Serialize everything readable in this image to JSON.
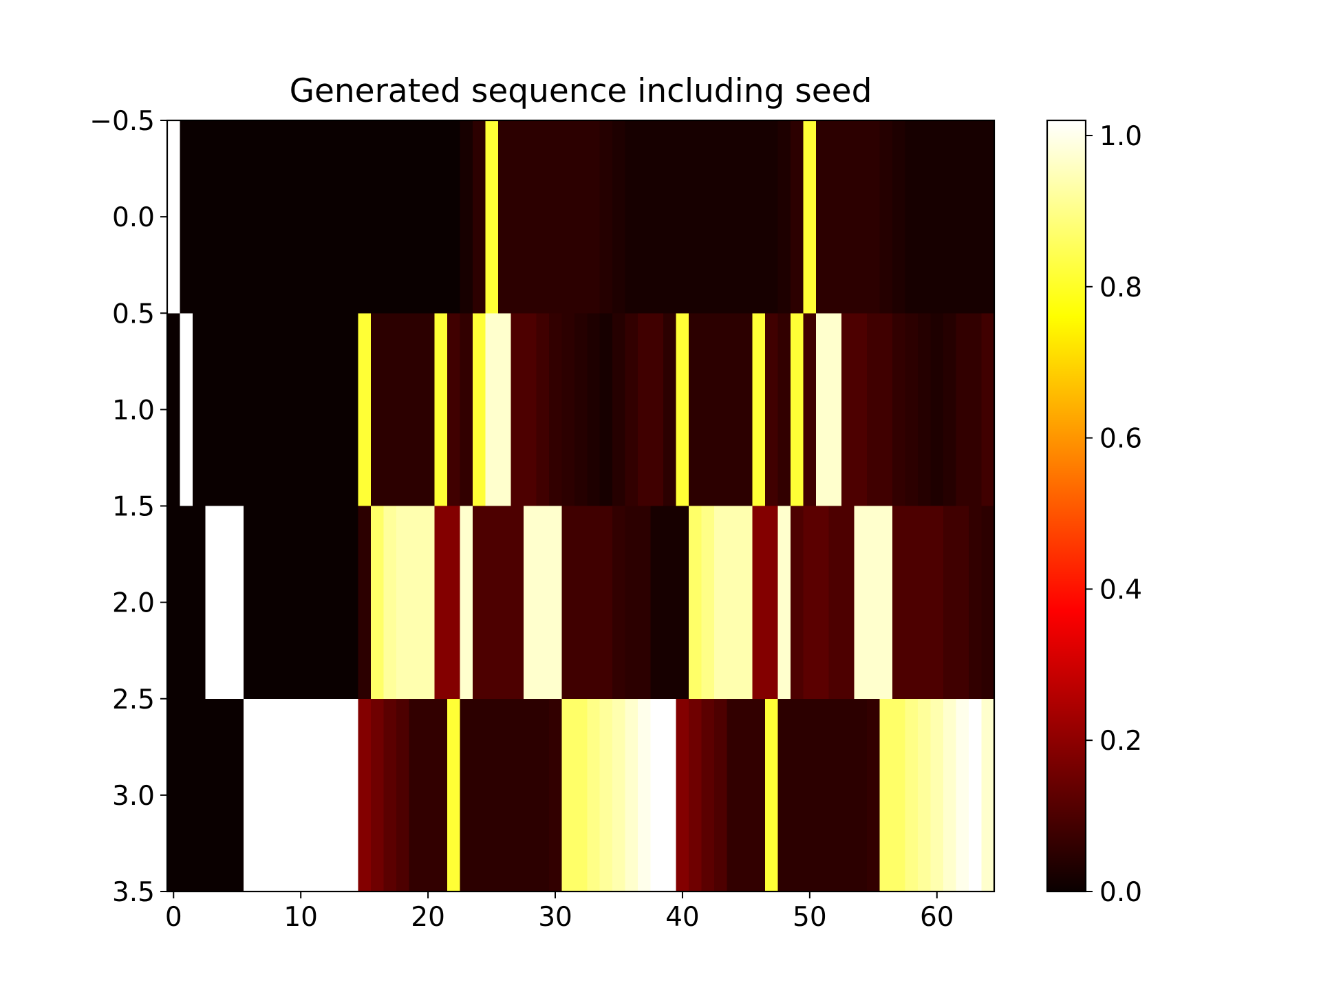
{
  "chart_data": {
    "type": "heatmap",
    "title": "Generated sequence including seed",
    "xlabel": "",
    "ylabel": "",
    "colormap": "hot",
    "xlim": [
      -0.5,
      64.5
    ],
    "ylim": [
      3.5,
      -0.5
    ],
    "x_ticks": [
      0,
      10,
      20,
      30,
      40,
      50,
      60
    ],
    "x_tick_labels": [
      "0",
      "10",
      "20",
      "30",
      "40",
      "50",
      "60"
    ],
    "y_ticks": [
      -0.5,
      0.0,
      0.5,
      1.0,
      1.5,
      2.0,
      2.5,
      3.0,
      3.5
    ],
    "y_tick_labels": [
      "−0.5",
      "0.0",
      "0.5",
      "1.0",
      "1.5",
      "2.0",
      "2.5",
      "3.0",
      "3.5"
    ],
    "colorbar": {
      "range": [
        0.0,
        1.02
      ],
      "ticks": [
        0.0,
        0.2,
        0.4,
        0.6,
        0.8,
        1.0
      ],
      "tick_labels": [
        "0.0",
        "0.2",
        "0.4",
        "0.6",
        "0.8",
        "1.0"
      ]
    },
    "rows": [
      [
        1.0,
        0,
        0,
        0,
        0,
        0,
        0,
        0,
        0,
        0,
        0,
        0,
        0,
        0,
        0,
        0,
        0,
        0,
        0,
        0,
        0,
        0,
        0,
        0.02,
        0.05,
        0.8,
        0.05,
        0.05,
        0.05,
        0.05,
        0.05,
        0.05,
        0.05,
        0.05,
        0.04,
        0.03,
        0.02,
        0.02,
        0.02,
        0.02,
        0.02,
        0.02,
        0.02,
        0.02,
        0.02,
        0.02,
        0.02,
        0.02,
        0.03,
        0.05,
        0.8,
        0.05,
        0.05,
        0.05,
        0.05,
        0.05,
        0.04,
        0.03,
        0.02,
        0.02,
        0.02,
        0.02,
        0.02,
        0.02,
        0.02
      ],
      [
        0.0,
        1.0,
        0,
        0,
        0,
        0,
        0,
        0,
        0,
        0,
        0,
        0,
        0,
        0,
        0,
        0.8,
        0.05,
        0.05,
        0.05,
        0.05,
        0.05,
        0.8,
        0.08,
        0.06,
        0.8,
        0.95,
        0.95,
        0.1,
        0.1,
        0.08,
        0.06,
        0.05,
        0.04,
        0.03,
        0.02,
        0.04,
        0.06,
        0.08,
        0.08,
        0.05,
        0.8,
        0.05,
        0.05,
        0.05,
        0.05,
        0.05,
        0.8,
        0.08,
        0.06,
        0.8,
        0.08,
        0.95,
        0.95,
        0.1,
        0.1,
        0.08,
        0.08,
        0.06,
        0.05,
        0.04,
        0.03,
        0.04,
        0.06,
        0.06,
        0.08
      ],
      [
        0.0,
        0.0,
        0.0,
        1.0,
        1.0,
        1.0,
        0,
        0,
        0,
        0,
        0,
        0,
        0,
        0,
        0,
        0.05,
        0.85,
        0.9,
        0.92,
        0.92,
        0.92,
        0.18,
        0.18,
        0.95,
        0.1,
        0.1,
        0.1,
        0.1,
        0.95,
        0.95,
        0.95,
        0.08,
        0.08,
        0.08,
        0.08,
        0.06,
        0.05,
        0.05,
        0.02,
        0.02,
        0.02,
        0.85,
        0.88,
        0.92,
        0.92,
        0.92,
        0.18,
        0.18,
        0.95,
        0.1,
        0.12,
        0.12,
        0.1,
        0.1,
        0.95,
        0.95,
        0.95,
        0.1,
        0.1,
        0.1,
        0.1,
        0.08,
        0.08,
        0.06,
        0.05
      ],
      [
        0.0,
        0.0,
        0.0,
        0.0,
        0.0,
        0.0,
        1.0,
        1.0,
        1.0,
        1.0,
        1.0,
        1.0,
        1.0,
        1.0,
        1.0,
        0.18,
        0.15,
        0.12,
        0.1,
        0.06,
        0.06,
        0.06,
        0.8,
        0.05,
        0.05,
        0.05,
        0.05,
        0.05,
        0.05,
        0.05,
        0.06,
        0.85,
        0.85,
        0.88,
        0.9,
        0.92,
        0.95,
        0.98,
        1.0,
        1.0,
        0.18,
        0.15,
        0.12,
        0.1,
        0.06,
        0.06,
        0.06,
        0.8,
        0.05,
        0.05,
        0.05,
        0.05,
        0.05,
        0.05,
        0.05,
        0.06,
        0.85,
        0.85,
        0.88,
        0.9,
        0.92,
        0.95,
        0.98,
        1.0,
        0.95
      ]
    ]
  }
}
